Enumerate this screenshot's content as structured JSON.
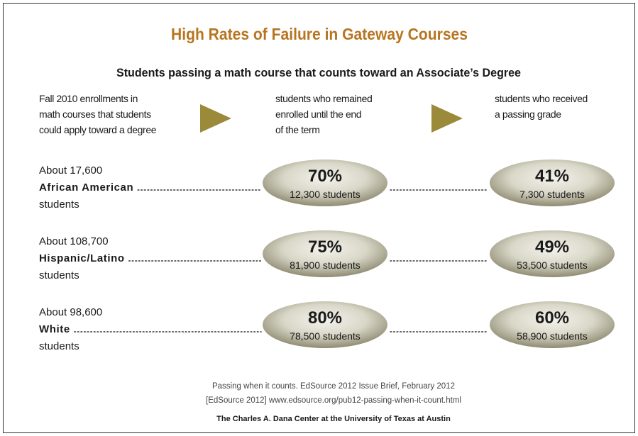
{
  "title": "High Rates of Failure in Gateway Courses",
  "subtitle": "Students passing a math course that counts toward an Associate’s Degree",
  "columns": [
    [
      "Fall 2010 enrollments in",
      "math courses that students",
      "could apply toward a degree"
    ],
    [
      "students who remained",
      "enrolled until the end",
      "of the term"
    ],
    [
      "students who received",
      "a passing grade"
    ]
  ],
  "rows": [
    {
      "enrollment": "About 17,600",
      "group": "African American",
      "suffix": "students",
      "retained": {
        "percent": "70%",
        "count": "12,300 students"
      },
      "passed": {
        "percent": "41%",
        "count": "7,300 students"
      }
    },
    {
      "enrollment": "About 108,700",
      "group": "Hispanic/Latino",
      "suffix": "students",
      "retained": {
        "percent": "75%",
        "count": "81,900 students"
      },
      "passed": {
        "percent": "49%",
        "count": "53,500 students"
      }
    },
    {
      "enrollment": "About 98,600",
      "group": "White",
      "suffix": "students",
      "retained": {
        "percent": "80%",
        "count": "78,500 students"
      },
      "passed": {
        "percent": "60%",
        "count": "58,900 students"
      }
    }
  ],
  "source": [
    "Passing when it counts. EdSource 2012 Issue Brief, February 2012",
    "[EdSource 2012] www.edsource.org/pub12-passing-when-it-count.html"
  ],
  "credit": "The Charles A. Dana Center at the University of Texas at Austin"
}
